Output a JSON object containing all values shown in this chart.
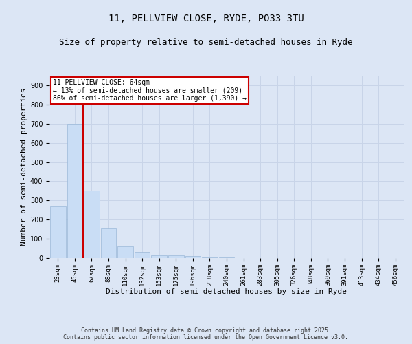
{
  "title": "11, PELLVIEW CLOSE, RYDE, PO33 3TU",
  "subtitle": "Size of property relative to semi-detached houses in Ryde",
  "xlabel": "Distribution of semi-detached houses by size in Ryde",
  "ylabel": "Number of semi-detached properties",
  "bin_labels": [
    "23sqm",
    "45sqm",
    "67sqm",
    "88sqm",
    "110sqm",
    "132sqm",
    "153sqm",
    "175sqm",
    "196sqm",
    "218sqm",
    "240sqm",
    "261sqm",
    "283sqm",
    "305sqm",
    "326sqm",
    "348sqm",
    "369sqm",
    "391sqm",
    "413sqm",
    "434sqm",
    "456sqm"
  ],
  "bar_values": [
    270,
    700,
    350,
    155,
    60,
    30,
    15,
    15,
    10,
    5,
    2,
    0,
    0,
    0,
    0,
    0,
    0,
    0,
    0,
    0,
    0
  ],
  "bar_color": "#c9ddf5",
  "bar_edge_color": "#9ab8d8",
  "vline_color": "#cc0000",
  "annotation_title": "11 PELLVIEW CLOSE: 64sqm",
  "annotation_line1": "← 13% of semi-detached houses are smaller (209)",
  "annotation_line2": "86% of semi-detached houses are larger (1,390) →",
  "annotation_box_color": "#ffffff",
  "annotation_box_edge": "#cc0000",
  "ylim": [
    0,
    950
  ],
  "yticks": [
    0,
    100,
    200,
    300,
    400,
    500,
    600,
    700,
    800,
    900
  ],
  "grid_color": "#c8d4e8",
  "bg_color": "#dce6f5",
  "footer_line1": "Contains HM Land Registry data © Crown copyright and database right 2025.",
  "footer_line2": "Contains public sector information licensed under the Open Government Licence v3.0.",
  "title_fontsize": 10,
  "subtitle_fontsize": 9,
  "axis_label_fontsize": 8,
  "tick_fontsize": 6.5,
  "annotation_fontsize": 7,
  "footer_fontsize": 6
}
